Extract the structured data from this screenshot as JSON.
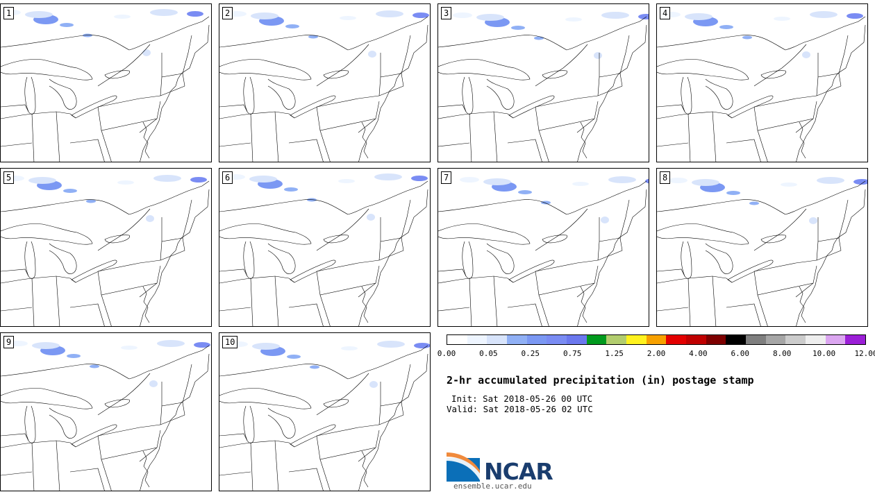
{
  "panels": [
    {
      "label": "1"
    },
    {
      "label": "2"
    },
    {
      "label": "3"
    },
    {
      "label": "4"
    },
    {
      "label": "5"
    },
    {
      "label": "6"
    },
    {
      "label": "7"
    },
    {
      "label": "8"
    },
    {
      "label": "9"
    },
    {
      "label": "10"
    }
  ],
  "colorbar": {
    "colors": [
      "#ffffff",
      "#eef5ff",
      "#d8e4fb",
      "#90b0f5",
      "#7b98f3",
      "#7a8cf3",
      "#6b78ee",
      "#009a1e",
      "#b2cd6e",
      "#fff21f",
      "#f7a100",
      "#e40000",
      "#c00000",
      "#7e0000",
      "#000000",
      "#7f7f7f",
      "#a6a6a6",
      "#cccccc",
      "#eeeeee",
      "#dba6f0",
      "#9b1fd7"
    ],
    "tick_labels": [
      "0.00",
      "0.05",
      "0.25",
      "0.75",
      "1.25",
      "2.00",
      "4.00",
      "6.00",
      "8.00",
      "10.00",
      "12.00"
    ]
  },
  "title": "2-hr accumulated precipitation (in) postage stamp",
  "init": "Init: Sat 2018-05-26 00 UTC",
  "valid": "Valid: Sat 2018-05-26 02 UTC",
  "logo_text": "NCAR",
  "site": "ensemble.ucar.edu"
}
